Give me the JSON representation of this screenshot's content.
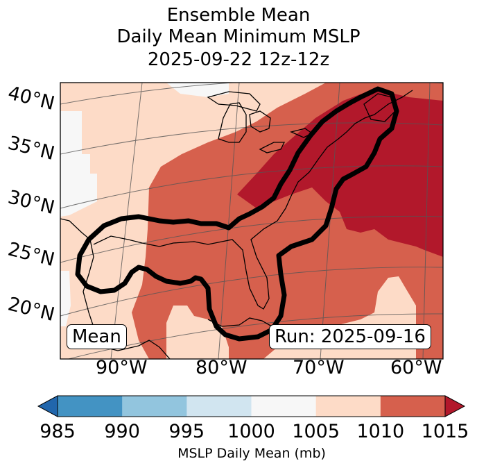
{
  "title_lines": [
    "Ensemble Mean",
    "Daily Mean Minimum MSLP",
    "2025-09-22 12z-12z"
  ],
  "map": {
    "lat_labels": [
      "40°N",
      "35°N",
      "30°N",
      "25°N",
      "20°N"
    ],
    "lon_labels": [
      "90°W",
      "80°W",
      "70°W",
      "60°W"
    ],
    "mean_label": "Mean",
    "run_label": "Run: 2025-09-16",
    "colors": {
      "land_outline": "#000000",
      "contour": "#000000",
      "gridline": "#555555"
    }
  },
  "colorbar": {
    "ticks": [
      "985",
      "990",
      "995",
      "1000",
      "1005",
      "1010",
      "1015"
    ],
    "label": "MSLP Daily Mean (mb)",
    "colors": [
      "#2166ac",
      "#4393c3",
      "#92c5de",
      "#d1e5f0",
      "#f7f7f7",
      "#fddbc7",
      "#d6604d",
      "#b2182b"
    ]
  }
}
